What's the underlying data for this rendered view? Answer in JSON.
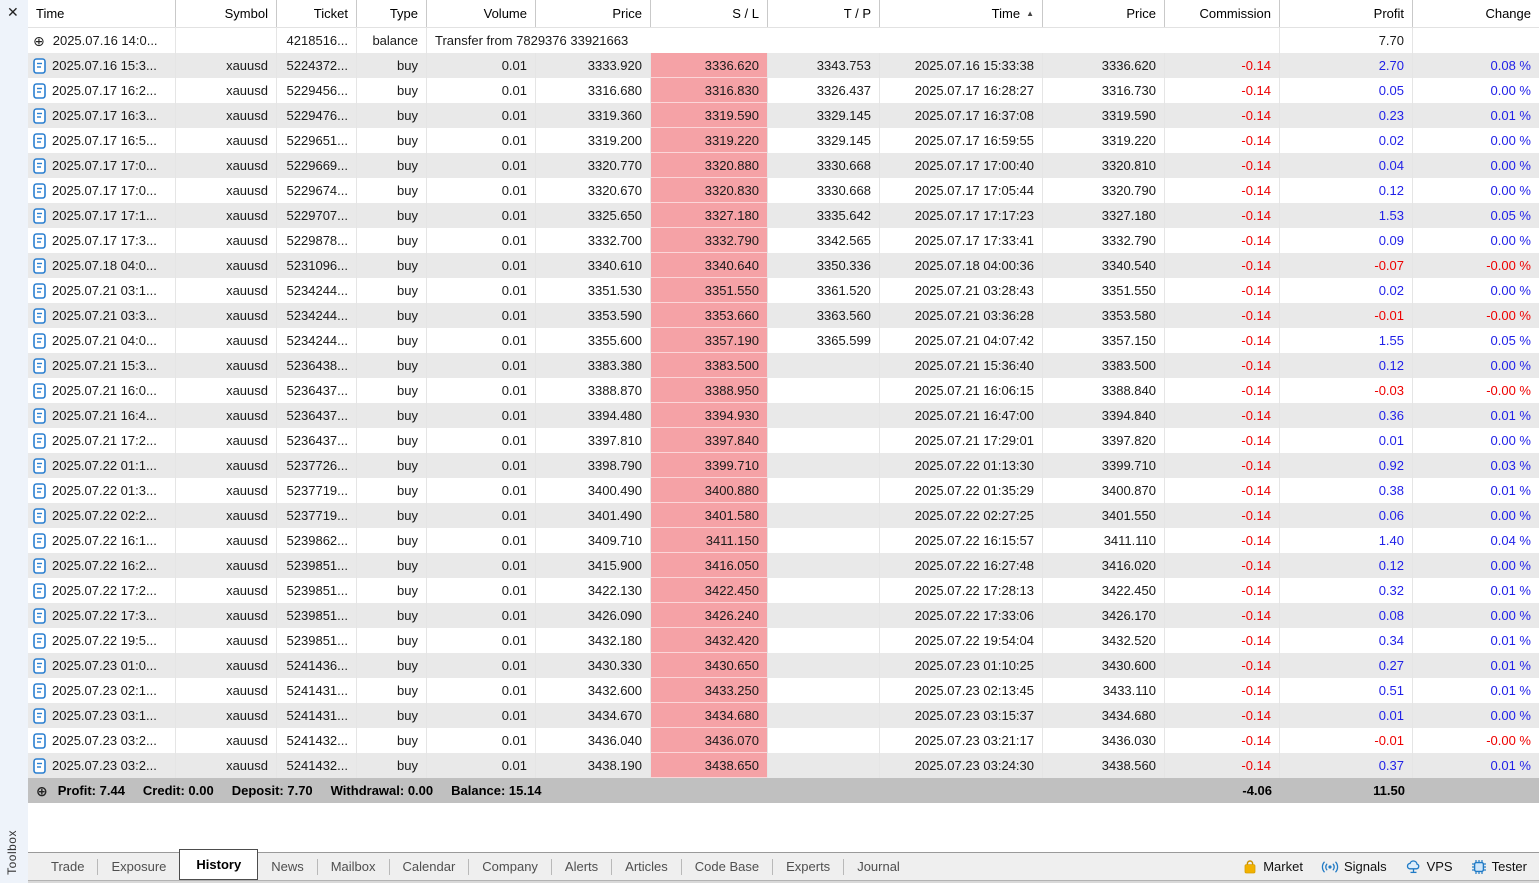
{
  "panel": {
    "close_glyph": "✕",
    "toolbox_label": "Toolbox",
    "expand_glyph": "⊕"
  },
  "colors": {
    "profit_positive": "#1f1fe8",
    "profit_negative": "#ee0000",
    "sl_highlight": "#f5a2a6",
    "summary_bar": "#c0c0c0",
    "row_alt": "#e9e9e9",
    "market_icon_yellow": "#f2b200",
    "status_icon_blue": "#1f7ac5"
  },
  "table": {
    "sort_arrow": "▲",
    "headers": [
      {
        "id": "time",
        "label": "Time",
        "align": "left"
      },
      {
        "id": "symbol",
        "label": "Symbol"
      },
      {
        "id": "ticket",
        "label": "Ticket"
      },
      {
        "id": "type",
        "label": "Type"
      },
      {
        "id": "volume",
        "label": "Volume"
      },
      {
        "id": "price",
        "label": "Price"
      },
      {
        "id": "sl",
        "label": "S / L"
      },
      {
        "id": "tp",
        "label": "T / P"
      },
      {
        "id": "time-close",
        "label": "Time",
        "sorted": true
      },
      {
        "id": "price-close",
        "label": "Price"
      },
      {
        "id": "commission",
        "label": "Commission"
      },
      {
        "id": "profit",
        "label": "Profit"
      },
      {
        "id": "change",
        "label": "Change"
      }
    ],
    "balance_row": {
      "time": "2025.07.16 14:0...",
      "symbol": "",
      "ticket": "4218516...",
      "type": "balance",
      "comment": "Transfer from 7829376 33921663",
      "profit": "7.70",
      "change": ""
    },
    "row_fields": [
      "time",
      "symbol",
      "ticket",
      "type",
      "volume",
      "price",
      "sl",
      "tp",
      "time_close",
      "price_close",
      "commission",
      "profit",
      "change"
    ],
    "rows": [
      [
        "2025.07.16 15:3...",
        "xauusd",
        "5224372...",
        "buy",
        "0.01",
        "3333.920",
        "3336.620",
        "3343.753",
        "2025.07.16 15:33:38",
        "3336.620",
        "-0.14",
        "2.70",
        "0.08 %"
      ],
      [
        "2025.07.17 16:2...",
        "xauusd",
        "5229456...",
        "buy",
        "0.01",
        "3316.680",
        "3316.830",
        "3326.437",
        "2025.07.17 16:28:27",
        "3316.730",
        "-0.14",
        "0.05",
        "0.00 %"
      ],
      [
        "2025.07.17 16:3...",
        "xauusd",
        "5229476...",
        "buy",
        "0.01",
        "3319.360",
        "3319.590",
        "3329.145",
        "2025.07.17 16:37:08",
        "3319.590",
        "-0.14",
        "0.23",
        "0.01 %"
      ],
      [
        "2025.07.17 16:5...",
        "xauusd",
        "5229651...",
        "buy",
        "0.01",
        "3319.200",
        "3319.220",
        "3329.145",
        "2025.07.17 16:59:55",
        "3319.220",
        "-0.14",
        "0.02",
        "0.00 %"
      ],
      [
        "2025.07.17 17:0...",
        "xauusd",
        "5229669...",
        "buy",
        "0.01",
        "3320.770",
        "3320.880",
        "3330.668",
        "2025.07.17 17:00:40",
        "3320.810",
        "-0.14",
        "0.04",
        "0.00 %"
      ],
      [
        "2025.07.17 17:0...",
        "xauusd",
        "5229674...",
        "buy",
        "0.01",
        "3320.670",
        "3320.830",
        "3330.668",
        "2025.07.17 17:05:44",
        "3320.790",
        "-0.14",
        "0.12",
        "0.00 %"
      ],
      [
        "2025.07.17 17:1...",
        "xauusd",
        "5229707...",
        "buy",
        "0.01",
        "3325.650",
        "3327.180",
        "3335.642",
        "2025.07.17 17:17:23",
        "3327.180",
        "-0.14",
        "1.53",
        "0.05 %"
      ],
      [
        "2025.07.17 17:3...",
        "xauusd",
        "5229878...",
        "buy",
        "0.01",
        "3332.700",
        "3332.790",
        "3342.565",
        "2025.07.17 17:33:41",
        "3332.790",
        "-0.14",
        "0.09",
        "0.00 %"
      ],
      [
        "2025.07.18 04:0...",
        "xauusd",
        "5231096...",
        "buy",
        "0.01",
        "3340.610",
        "3340.640",
        "3350.336",
        "2025.07.18 04:00:36",
        "3340.540",
        "-0.14",
        "-0.07",
        "-0.00 %"
      ],
      [
        "2025.07.21 03:1...",
        "xauusd",
        "5234244...",
        "buy",
        "0.01",
        "3351.530",
        "3351.550",
        "3361.520",
        "2025.07.21 03:28:43",
        "3351.550",
        "-0.14",
        "0.02",
        "0.00 %"
      ],
      [
        "2025.07.21 03:3...",
        "xauusd",
        "5234244...",
        "buy",
        "0.01",
        "3353.590",
        "3353.660",
        "3363.560",
        "2025.07.21 03:36:28",
        "3353.580",
        "-0.14",
        "-0.01",
        "-0.00 %"
      ],
      [
        "2025.07.21 04:0...",
        "xauusd",
        "5234244...",
        "buy",
        "0.01",
        "3355.600",
        "3357.190",
        "3365.599",
        "2025.07.21 04:07:42",
        "3357.150",
        "-0.14",
        "1.55",
        "0.05 %"
      ],
      [
        "2025.07.21 15:3...",
        "xauusd",
        "5236438...",
        "buy",
        "0.01",
        "3383.380",
        "3383.500",
        "",
        "2025.07.21 15:36:40",
        "3383.500",
        "-0.14",
        "0.12",
        "0.00 %"
      ],
      [
        "2025.07.21 16:0...",
        "xauusd",
        "5236437...",
        "buy",
        "0.01",
        "3388.870",
        "3388.950",
        "",
        "2025.07.21 16:06:15",
        "3388.840",
        "-0.14",
        "-0.03",
        "-0.00 %"
      ],
      [
        "2025.07.21 16:4...",
        "xauusd",
        "5236437...",
        "buy",
        "0.01",
        "3394.480",
        "3394.930",
        "",
        "2025.07.21 16:47:00",
        "3394.840",
        "-0.14",
        "0.36",
        "0.01 %"
      ],
      [
        "2025.07.21 17:2...",
        "xauusd",
        "5236437...",
        "buy",
        "0.01",
        "3397.810",
        "3397.840",
        "",
        "2025.07.21 17:29:01",
        "3397.820",
        "-0.14",
        "0.01",
        "0.00 %"
      ],
      [
        "2025.07.22 01:1...",
        "xauusd",
        "5237726...",
        "buy",
        "0.01",
        "3398.790",
        "3399.710",
        "",
        "2025.07.22 01:13:30",
        "3399.710",
        "-0.14",
        "0.92",
        "0.03 %"
      ],
      [
        "2025.07.22 01:3...",
        "xauusd",
        "5237719...",
        "buy",
        "0.01",
        "3400.490",
        "3400.880",
        "",
        "2025.07.22 01:35:29",
        "3400.870",
        "-0.14",
        "0.38",
        "0.01 %"
      ],
      [
        "2025.07.22 02:2...",
        "xauusd",
        "5237719...",
        "buy",
        "0.01",
        "3401.490",
        "3401.580",
        "",
        "2025.07.22 02:27:25",
        "3401.550",
        "-0.14",
        "0.06",
        "0.00 %"
      ],
      [
        "2025.07.22 16:1...",
        "xauusd",
        "5239862...",
        "buy",
        "0.01",
        "3409.710",
        "3411.150",
        "",
        "2025.07.22 16:15:57",
        "3411.110",
        "-0.14",
        "1.40",
        "0.04 %"
      ],
      [
        "2025.07.22 16:2...",
        "xauusd",
        "5239851...",
        "buy",
        "0.01",
        "3415.900",
        "3416.050",
        "",
        "2025.07.22 16:27:48",
        "3416.020",
        "-0.14",
        "0.12",
        "0.00 %"
      ],
      [
        "2025.07.22 17:2...",
        "xauusd",
        "5239851...",
        "buy",
        "0.01",
        "3422.130",
        "3422.450",
        "",
        "2025.07.22 17:28:13",
        "3422.450",
        "-0.14",
        "0.32",
        "0.01 %"
      ],
      [
        "2025.07.22 17:3...",
        "xauusd",
        "5239851...",
        "buy",
        "0.01",
        "3426.090",
        "3426.240",
        "",
        "2025.07.22 17:33:06",
        "3426.170",
        "-0.14",
        "0.08",
        "0.00 %"
      ],
      [
        "2025.07.22 19:5...",
        "xauusd",
        "5239851...",
        "buy",
        "0.01",
        "3432.180",
        "3432.420",
        "",
        "2025.07.22 19:54:04",
        "3432.520",
        "-0.14",
        "0.34",
        "0.01 %"
      ],
      [
        "2025.07.23 01:0...",
        "xauusd",
        "5241436...",
        "buy",
        "0.01",
        "3430.330",
        "3430.650",
        "",
        "2025.07.23 01:10:25",
        "3430.600",
        "-0.14",
        "0.27",
        "0.01 %"
      ],
      [
        "2025.07.23 02:1...",
        "xauusd",
        "5241431...",
        "buy",
        "0.01",
        "3432.600",
        "3433.250",
        "",
        "2025.07.23 02:13:45",
        "3433.110",
        "-0.14",
        "0.51",
        "0.01 %"
      ],
      [
        "2025.07.23 03:1...",
        "xauusd",
        "5241431...",
        "buy",
        "0.01",
        "3434.670",
        "3434.680",
        "",
        "2025.07.23 03:15:37",
        "3434.680",
        "-0.14",
        "0.01",
        "0.00 %"
      ],
      [
        "2025.07.23 03:2...",
        "xauusd",
        "5241432...",
        "buy",
        "0.01",
        "3436.040",
        "3436.070",
        "",
        "2025.07.23 03:21:17",
        "3436.030",
        "-0.14",
        "-0.01",
        "-0.00 %"
      ],
      [
        "2025.07.23 03:2...",
        "xauusd",
        "5241432...",
        "buy",
        "0.01",
        "3438.190",
        "3438.650",
        "",
        "2025.07.23 03:24:30",
        "3438.560",
        "-0.14",
        "0.37",
        "0.01 %"
      ]
    ],
    "summary": {
      "segments": [
        {
          "label": "Profit:",
          "value": "7.44"
        },
        {
          "label": "Credit:",
          "value": "0.00"
        },
        {
          "label": "Deposit:",
          "value": "7.70"
        },
        {
          "label": "Withdrawal:",
          "value": "0.00"
        },
        {
          "label": "Balance:",
          "value": "15.14"
        }
      ],
      "commission_total": "-4.06",
      "profit_total": "11.50"
    }
  },
  "tabs": {
    "active": "History",
    "items": [
      "Trade",
      "Exposure",
      "History",
      "News",
      "Mailbox",
      "Calendar",
      "Company",
      "Alerts",
      "Articles",
      "Code Base",
      "Experts",
      "Journal"
    ]
  },
  "statusbar": {
    "items": [
      {
        "label": "Market",
        "icon": "market-bag-icon"
      },
      {
        "label": "Signals",
        "icon": "signals-icon"
      },
      {
        "label": "VPS",
        "icon": "vps-cloud-icon"
      },
      {
        "label": "Tester",
        "icon": "tester-chip-icon"
      }
    ]
  }
}
